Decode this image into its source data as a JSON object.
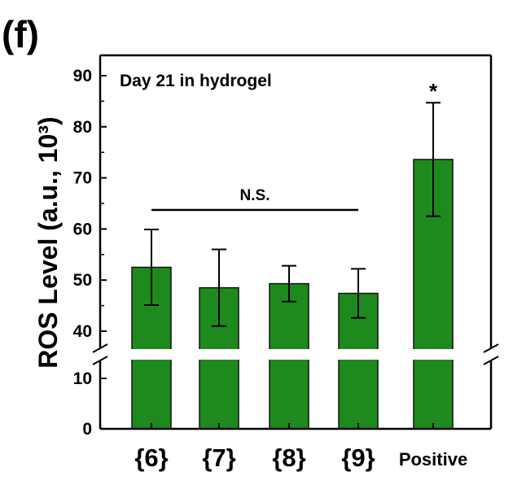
{
  "panel_label": "(f)",
  "colors": {
    "bar": "#1e8a1e",
    "bar_edge": "#111111",
    "axis": "#000000",
    "background": "#ffffff"
  },
  "chart_data": {
    "type": "bar",
    "title": "Day 21 in hydrogel",
    "xlabel": "",
    "ylabel": "ROS Level (a.u., 10³)",
    "categories": [
      "{6}",
      "{7}",
      "{8}",
      "{9}",
      "Positive"
    ],
    "values": [
      52.5,
      48.5,
      49.3,
      47.4,
      73.6
    ],
    "errors": [
      7.4,
      7.5,
      3.5,
      4.8,
      11.1
    ],
    "y_axis_break": {
      "lower": [
        0,
        15
      ],
      "upper": [
        35,
        92
      ]
    },
    "yticks_lower": [
      0,
      10
    ],
    "yticks_upper": [
      40,
      50,
      60,
      70,
      80,
      90
    ],
    "annotations": [
      {
        "text": "N.S.",
        "spans": [
          "{6}",
          "{9}"
        ]
      },
      {
        "text": "*",
        "category": "Positive"
      }
    ],
    "grid": false,
    "legend": "none"
  }
}
